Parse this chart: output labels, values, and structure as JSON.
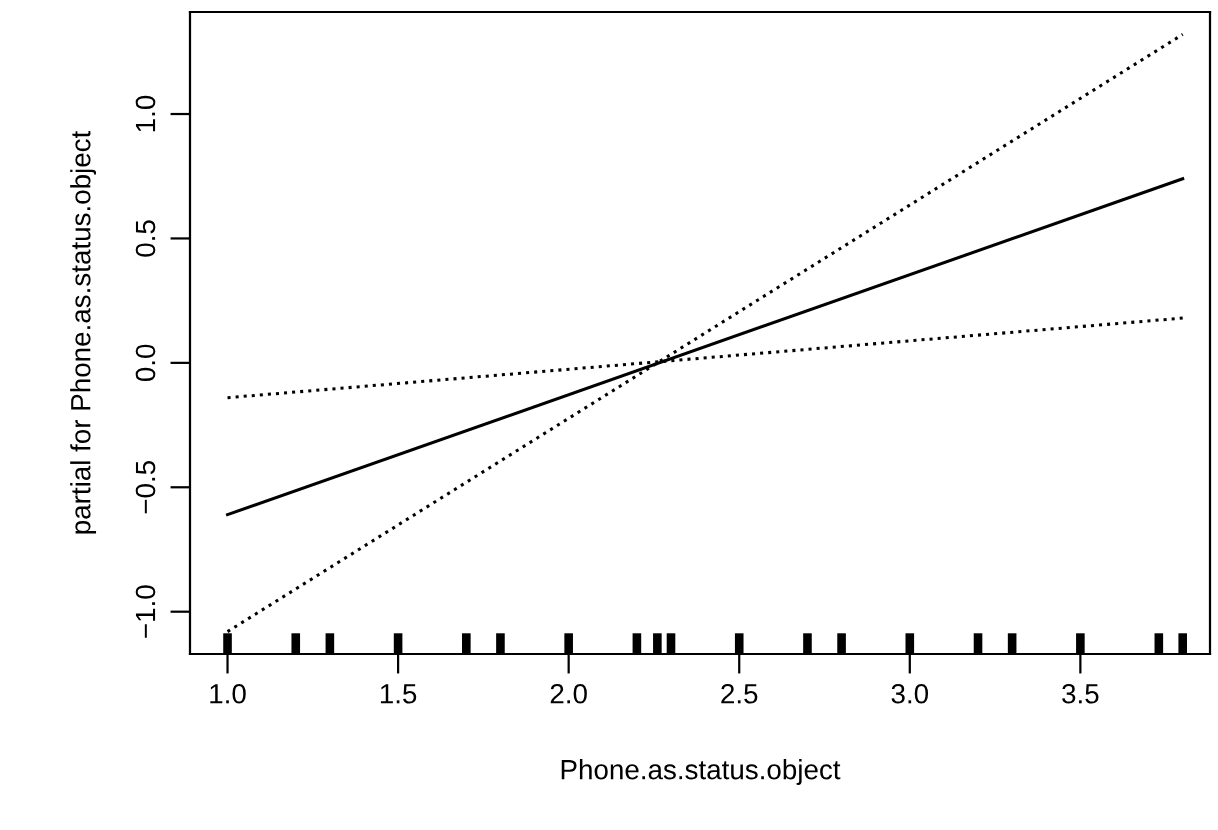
{
  "chart_data": {
    "type": "scatter",
    "xlabel": "Phone.as.status.object",
    "ylabel": "partial for Phone.as.status.object",
    "xlim": [
      0.89,
      3.88
    ],
    "ylim": [
      -1.17,
      1.41
    ],
    "xticks": [
      {
        "value": 1,
        "label": "1.0"
      },
      1.5,
      {
        "value": 2,
        "label": "2.0"
      },
      2.5,
      {
        "value": 3,
        "label": "3.0"
      },
      3.5
    ],
    "yticks": [
      {
        "value": -1,
        "label": "−1.0"
      },
      -0.5,
      {
        "value": 0,
        "label": "0.0"
      },
      0.5,
      {
        "value": 1,
        "label": "1.0"
      }
    ],
    "grid": false,
    "legend": false,
    "series": [
      {
        "type": "line",
        "color": "#000000",
        "x": [
          1.0,
          3.8
        ],
        "values": [
          -0.61,
          0.74
        ],
        "line_style": "solid"
      },
      {
        "type": "line",
        "color": "#000000",
        "x": [
          1.0,
          3.8
        ],
        "values": [
          -1.08,
          1.32
        ],
        "line_style": "dotted"
      },
      {
        "type": "line",
        "color": "#000000",
        "x": [
          1.0,
          3.8
        ],
        "values": [
          -0.14,
          0.18
        ],
        "line_style": "dotted"
      },
      {
        "color": "#000000",
        "x": [
          1.0,
          1.2,
          1.3,
          1.5,
          1.7,
          1.8,
          2.0,
          2.2,
          2.26,
          2.3,
          2.5,
          2.7,
          2.8,
          3.0,
          3.2,
          3.3,
          3.5,
          3.73,
          3.8
        ],
        "values": [
          -1.13,
          -1.13,
          -1.13,
          -1.13,
          -1.13,
          -1.13,
          -1.13,
          -1.13,
          -1.13,
          -1.13,
          -1.13,
          -1.13,
          -1.13,
          -1.13,
          -1.13,
          -1.13,
          -1.13,
          -1.13,
          -1.13
        ]
      }
    ]
  }
}
